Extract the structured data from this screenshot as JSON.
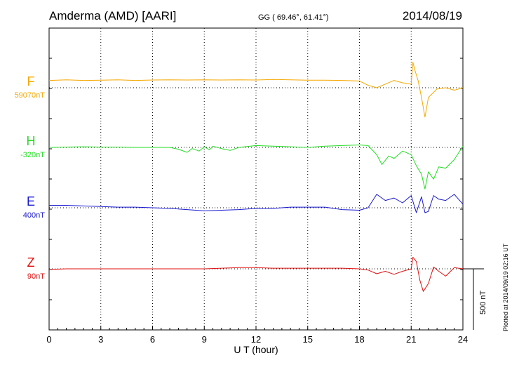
{
  "header": {
    "station": "Amderma (AMD)  [AARI]",
    "coords": "GG ( 69.46°,  61.41°)",
    "date": "2014/08/19"
  },
  "footer": {
    "plotted_note": "Plotted at 2014/09/19 02:16 UT"
  },
  "colors": {
    "F": "#f5a800",
    "H": "#22dd22",
    "E": "#1a1ad0",
    "Z": "#e01010"
  },
  "chart_data": {
    "type": "line",
    "xlabel": "U T (hour)",
    "x_ticks": [
      "0",
      "3",
      "6",
      "9",
      "12",
      "15",
      "18",
      "21",
      "24"
    ],
    "xlim": [
      0,
      24
    ],
    "scale_bar": {
      "label": "500 nT",
      "value_nT": 500
    },
    "series": [
      {
        "name": "F",
        "baseline_label": "59070nT",
        "color": "#f5a800",
        "unit": "nT relative to baseline",
        "x": [
          0,
          1,
          2,
          3,
          4,
          5,
          6,
          7,
          8,
          9,
          10,
          11,
          12,
          13,
          14,
          15,
          16,
          17,
          18,
          18.5,
          19,
          19.5,
          20,
          20.5,
          21,
          21.1,
          21.2,
          21.4,
          21.6,
          21.8,
          22,
          22.5,
          23,
          23.5,
          24
        ],
        "values": [
          60,
          65,
          60,
          62,
          65,
          60,
          63,
          65,
          63,
          65,
          63,
          65,
          63,
          67,
          65,
          62,
          62,
          60,
          55,
          20,
          0,
          30,
          60,
          40,
          30,
          210,
          150,
          60,
          -80,
          -240,
          -80,
          -10,
          0,
          -20,
          0
        ]
      },
      {
        "name": "H",
        "baseline_label": "-320nT",
        "color": "#22dd22",
        "unit": "nT relative to baseline",
        "x": [
          0,
          1,
          2,
          3,
          4,
          5,
          6,
          7,
          7.5,
          8,
          8.3,
          8.7,
          9,
          9.3,
          9.5,
          10,
          10.5,
          11,
          12,
          13,
          14,
          15,
          16,
          17,
          18,
          18.5,
          19,
          19.3,
          19.7,
          20,
          20.5,
          21,
          21.3,
          21.6,
          21.8,
          22,
          22.3,
          22.6,
          23,
          23.5,
          24
        ],
        "values": [
          0,
          3,
          5,
          3,
          3,
          0,
          0,
          0,
          -15,
          -40,
          -10,
          -30,
          5,
          -20,
          10,
          -10,
          -25,
          0,
          15,
          10,
          5,
          0,
          10,
          15,
          20,
          15,
          -60,
          -140,
          -70,
          -90,
          -30,
          -60,
          -150,
          -220,
          -340,
          -200,
          -260,
          -160,
          -170,
          -100,
          10
        ]
      },
      {
        "name": "E",
        "baseline_label": "400nT",
        "color": "#1a1ad0",
        "unit": "nT relative to baseline",
        "x": [
          0,
          1,
          2,
          3,
          4,
          5,
          6,
          7,
          8,
          9,
          10,
          11,
          12,
          13,
          14,
          15,
          16,
          17,
          18,
          18.5,
          19,
          19.5,
          20,
          20.5,
          21,
          21.3,
          21.6,
          21.8,
          22,
          22.3,
          22.6,
          23,
          23.5,
          24
        ],
        "values": [
          20,
          20,
          15,
          10,
          5,
          5,
          0,
          -5,
          -15,
          -25,
          -20,
          -15,
          -5,
          -5,
          5,
          5,
          5,
          -15,
          -20,
          0,
          110,
          60,
          80,
          40,
          100,
          -40,
          90,
          -40,
          -30,
          100,
          70,
          60,
          110,
          30
        ]
      },
      {
        "name": "Z",
        "baseline_label": "90nT",
        "color": "#e01010",
        "unit": "nT relative to baseline",
        "x": [
          0,
          1,
          2,
          3,
          4,
          5,
          6,
          7,
          8,
          9,
          10,
          11,
          12,
          13,
          14,
          15,
          16,
          17,
          18,
          18.5,
          19,
          19.5,
          20,
          20.5,
          21,
          21.1,
          21.3,
          21.5,
          21.7,
          22,
          22.3,
          22.6,
          23,
          23.5,
          24
        ],
        "values": [
          -5,
          0,
          0,
          0,
          0,
          0,
          0,
          0,
          0,
          0,
          5,
          10,
          10,
          5,
          5,
          5,
          5,
          5,
          0,
          -10,
          -40,
          -20,
          -45,
          -20,
          0,
          95,
          60,
          -90,
          -185,
          -120,
          15,
          -20,
          -60,
          10,
          0
        ]
      }
    ]
  }
}
